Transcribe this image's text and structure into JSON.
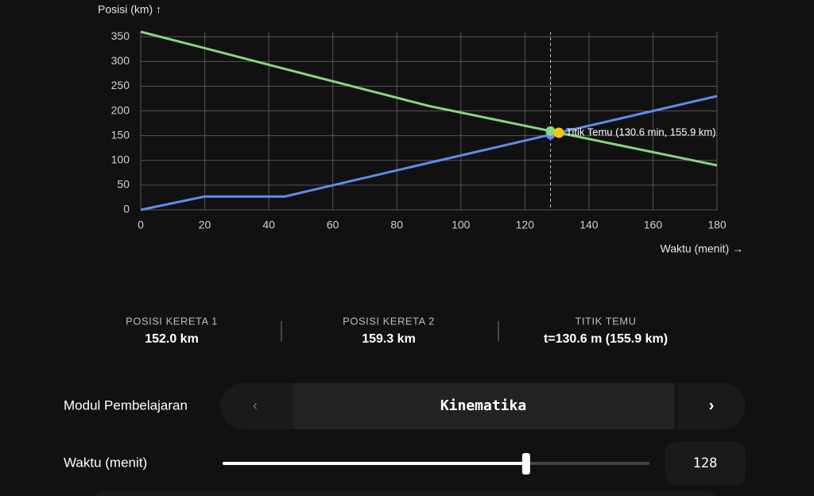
{
  "chart_data": {
    "type": "line",
    "y_label": "Posisi (km) ↑",
    "x_label": "Waktu (menit) →",
    "x": [
      0,
      20,
      45,
      90,
      180
    ],
    "series": [
      {
        "name": "Kereta 1",
        "color": "#5b8def",
        "values": [
          0,
          27,
          27,
          95,
          230
        ]
      },
      {
        "name": "Kereta 2",
        "color": "#86d67e",
        "values": [
          360,
          327,
          285,
          210,
          90
        ]
      }
    ],
    "xlim": [
      0,
      180
    ],
    "ylim": [
      0,
      360
    ],
    "xticks": [
      0,
      20,
      40,
      60,
      80,
      100,
      120,
      140,
      160,
      180
    ],
    "yticks": [
      0,
      50,
      100,
      150,
      200,
      250,
      300,
      350
    ],
    "grid": true,
    "cursor": {
      "x": 128,
      "values": [
        152.0,
        159.3
      ]
    },
    "meeting_point": {
      "x": 130.6,
      "y": 155.9,
      "color": "#f5c518",
      "label": "Titik Temu (130.6 min, 155.9 km)"
    }
  },
  "stats": [
    {
      "label": "POSISI KERETA 1",
      "value": "152.0 km"
    },
    {
      "label": "POSISI KERETA 2",
      "value": "159.3 km"
    },
    {
      "label": "TITIK TEMU",
      "value": "t=130.6 m (155.9 km)"
    }
  ],
  "controls": {
    "module": {
      "label": "Modul Pembelajaran",
      "prev": "‹",
      "value": "Kinematika",
      "next": "›"
    },
    "time": {
      "label": "Waktu (menit)",
      "value": 128
    }
  }
}
